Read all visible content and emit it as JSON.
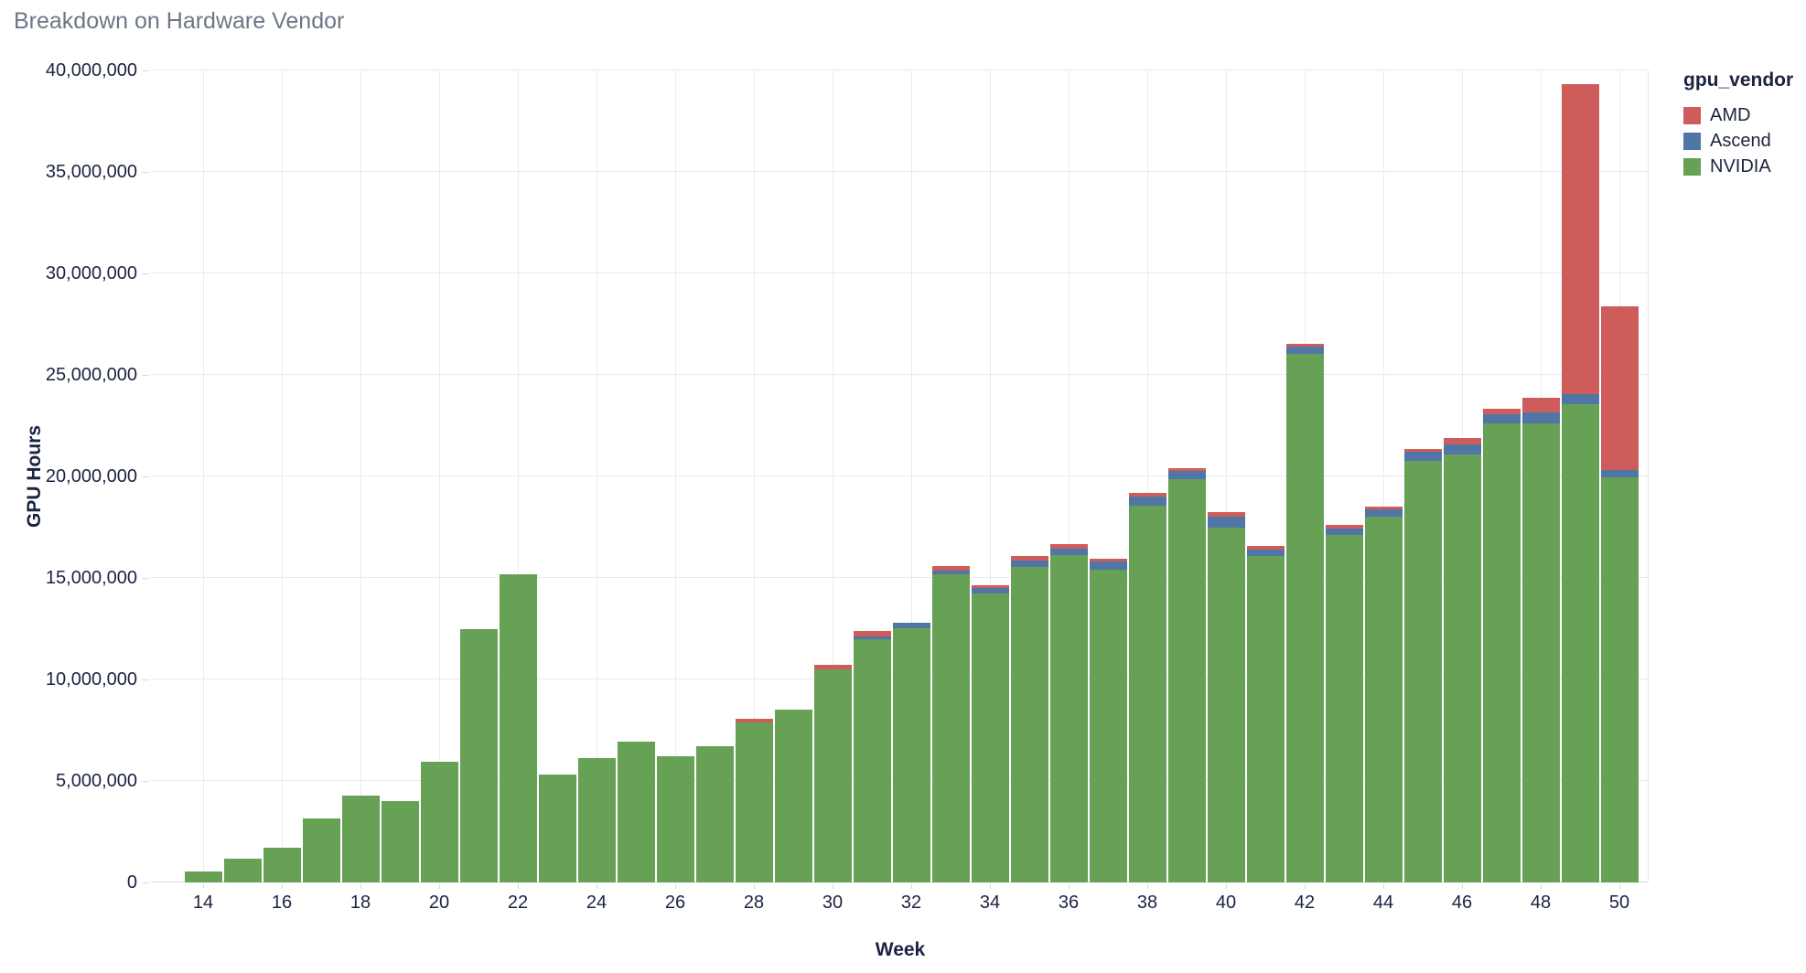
{
  "title": "Breakdown on Hardware Vendor",
  "colors": {
    "AMD": "#cd5c5a",
    "Ascend": "#5076a6",
    "NVIDIA": "#66a156",
    "grid": "#e9eaf1",
    "axis_text": "#1c2340",
    "title_text": "#6b7787"
  },
  "legend": {
    "title": "gpu_vendor",
    "items": [
      {
        "label": "AMD",
        "color": "#cd5c5a"
      },
      {
        "label": "Ascend",
        "color": "#5076a6"
      },
      {
        "label": "NVIDIA",
        "color": "#66a156"
      }
    ]
  },
  "chart_data": {
    "type": "bar",
    "stacked": true,
    "title": "Breakdown on Hardware Vendor",
    "xlabel": "Week",
    "ylabel": "GPU Hours",
    "ylim": [
      0,
      40000000
    ],
    "ytick_interval": 5000000,
    "x": [
      14,
      15,
      16,
      17,
      18,
      19,
      20,
      21,
      22,
      23,
      24,
      25,
      26,
      27,
      28,
      29,
      30,
      31,
      32,
      33,
      34,
      35,
      36,
      37,
      38,
      39,
      40,
      41,
      42,
      43,
      44,
      45,
      46,
      47,
      48,
      49,
      50
    ],
    "xticks": [
      14,
      16,
      18,
      20,
      22,
      24,
      26,
      28,
      30,
      32,
      34,
      36,
      38,
      40,
      42,
      44,
      46,
      48,
      50
    ],
    "stack_order_bottom_to_top": [
      "NVIDIA",
      "Ascend",
      "AMD"
    ],
    "legend_position": "top-right",
    "grid": true,
    "series": [
      {
        "name": "NVIDIA",
        "values": [
          550000,
          1150000,
          1730000,
          3150000,
          4280000,
          4000000,
          5950000,
          12490000,
          15190000,
          5310000,
          6110000,
          6950000,
          6200000,
          6710000,
          7880000,
          8530000,
          10510000,
          11980000,
          12540000,
          15170000,
          14220000,
          15540000,
          16110000,
          15390000,
          18570000,
          19860000,
          17490000,
          16070000,
          26020000,
          17120000,
          18020000,
          20770000,
          21100000,
          22630000,
          22600000,
          23540000,
          19940000
        ]
      },
      {
        "name": "Ascend",
        "values": [
          0,
          0,
          0,
          0,
          0,
          0,
          0,
          0,
          0,
          0,
          0,
          0,
          0,
          0,
          0,
          0,
          0,
          140000,
          260000,
          190000,
          270000,
          330000,
          330000,
          410000,
          420000,
          400000,
          530000,
          330000,
          370000,
          330000,
          360000,
          440000,
          480000,
          450000,
          570000,
          510000,
          360000
        ]
      },
      {
        "name": "AMD",
        "values": [
          0,
          0,
          0,
          0,
          0,
          0,
          0,
          0,
          0,
          0,
          0,
          0,
          0,
          0,
          180000,
          0,
          200000,
          270000,
          0,
          230000,
          150000,
          200000,
          230000,
          160000,
          180000,
          150000,
          230000,
          190000,
          140000,
          150000,
          150000,
          160000,
          300000,
          240000,
          710000,
          15260000,
          8080000
        ]
      }
    ]
  }
}
